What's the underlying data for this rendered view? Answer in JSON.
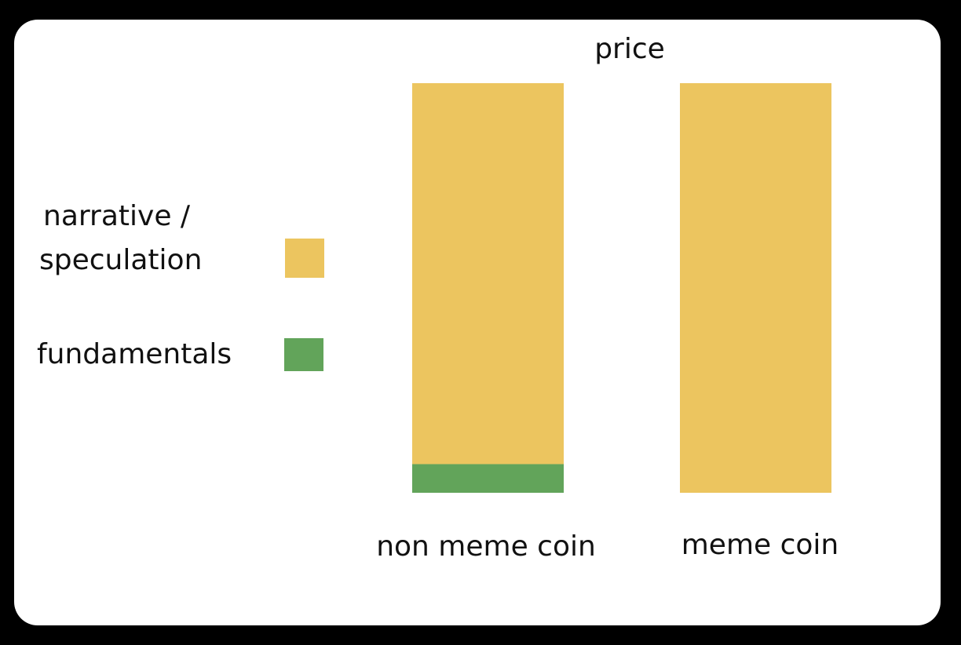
{
  "chart_data": {
    "type": "bar",
    "stacked": true,
    "title": "price",
    "categories": [
      "non meme coin",
      "meme coin"
    ],
    "series": [
      {
        "name": "fundamentals",
        "values": [
          7,
          0
        ],
        "color": "#62a45a"
      },
      {
        "name": "narrative / speculation",
        "values": [
          93,
          100
        ],
        "color": "#ecc55f"
      }
    ],
    "legend": {
      "placement": "left",
      "entries": [
        {
          "label_line1": "narrative /",
          "label_line2": "speculation",
          "color": "#ecc55f"
        },
        {
          "label_line1": "fundamentals",
          "label_line2": "",
          "color": "#62a45a"
        }
      ]
    },
    "ylim": [
      0,
      100
    ],
    "grid": false,
    "axes_visible": false
  }
}
